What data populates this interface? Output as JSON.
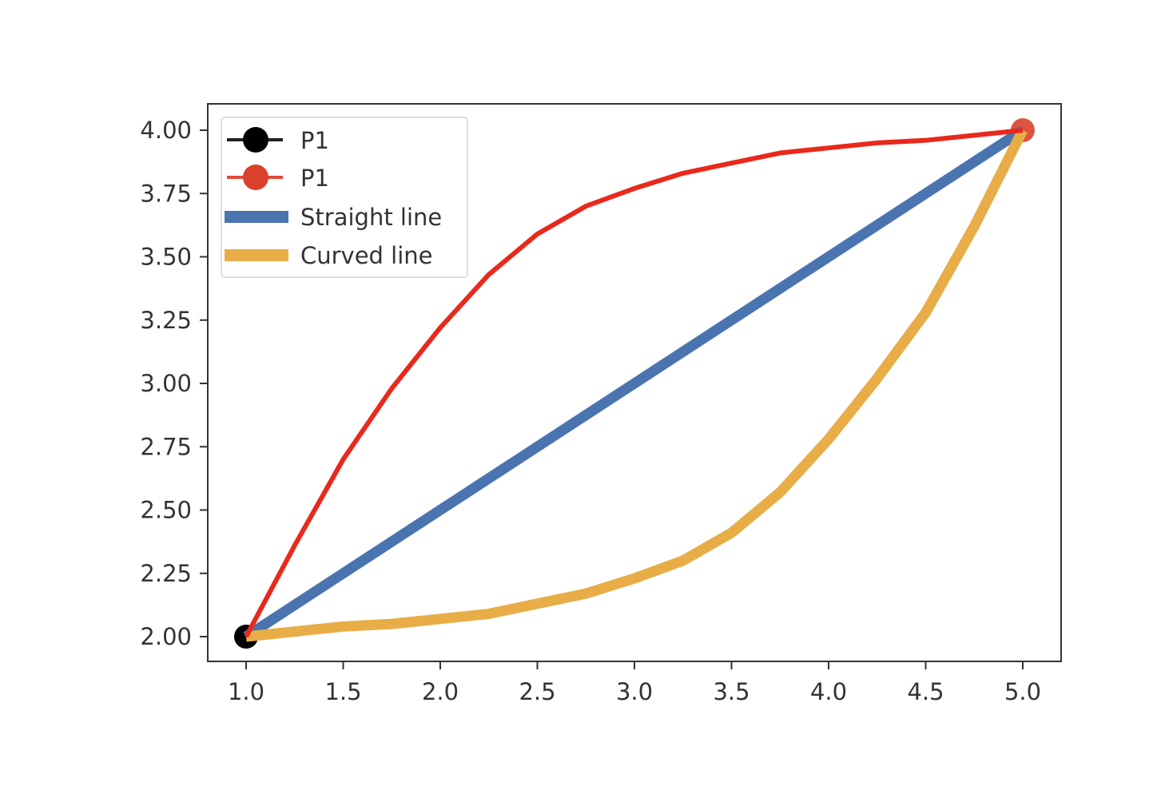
{
  "chart_data": {
    "type": "line",
    "title": "",
    "xlabel": "",
    "ylabel": "",
    "xlim": [
      0.8,
      5.2
    ],
    "ylim": [
      1.9,
      4.1
    ],
    "grid": false,
    "legend_placement": "top-left",
    "x_ticks": [
      "1.0",
      "1.5",
      "2.0",
      "2.5",
      "3.0",
      "3.5",
      "4.0",
      "4.5",
      "5.0"
    ],
    "y_ticks": [
      "2.00",
      "2.25",
      "2.50",
      "2.75",
      "3.00",
      "3.25",
      "3.50",
      "3.75",
      "4.00"
    ],
    "series": [
      {
        "name": "P1",
        "kind": "marker",
        "color": "#000000",
        "x": [
          1.0
        ],
        "y": [
          2.0
        ]
      },
      {
        "name": "P1",
        "kind": "marker",
        "color": "#d9412b",
        "x": [
          5.0
        ],
        "y": [
          4.0
        ]
      },
      {
        "name": "Straight line",
        "kind": "line",
        "color": "#4a74b0",
        "x": [
          1.0,
          5.0
        ],
        "y": [
          2.0,
          4.0
        ]
      },
      {
        "name": "Curved line",
        "kind": "line",
        "color": "#e8ad47",
        "x": [
          1.0,
          1.25,
          1.5,
          1.75,
          2.0,
          2.25,
          2.5,
          2.75,
          3.0,
          3.25,
          3.5,
          3.75,
          4.0,
          4.25,
          4.5,
          4.75,
          5.0
        ],
        "y": [
          2.0,
          2.02,
          2.04,
          2.05,
          2.07,
          2.09,
          2.13,
          2.17,
          2.23,
          2.3,
          2.41,
          2.57,
          2.78,
          3.02,
          3.28,
          3.62,
          4.0
        ]
      },
      {
        "name": "",
        "kind": "line",
        "color": "#e8291c",
        "x": [
          1.0,
          1.25,
          1.5,
          1.75,
          2.0,
          2.25,
          2.5,
          2.75,
          3.0,
          3.25,
          3.5,
          3.75,
          4.0,
          4.25,
          4.5,
          4.75,
          5.0
        ],
        "y": [
          2.0,
          2.36,
          2.7,
          2.98,
          3.22,
          3.43,
          3.59,
          3.7,
          3.77,
          3.83,
          3.87,
          3.91,
          3.93,
          3.95,
          3.96,
          3.98,
          4.0
        ]
      }
    ],
    "legend": [
      "P1",
      "P1",
      "Straight line",
      "Curved line"
    ]
  }
}
